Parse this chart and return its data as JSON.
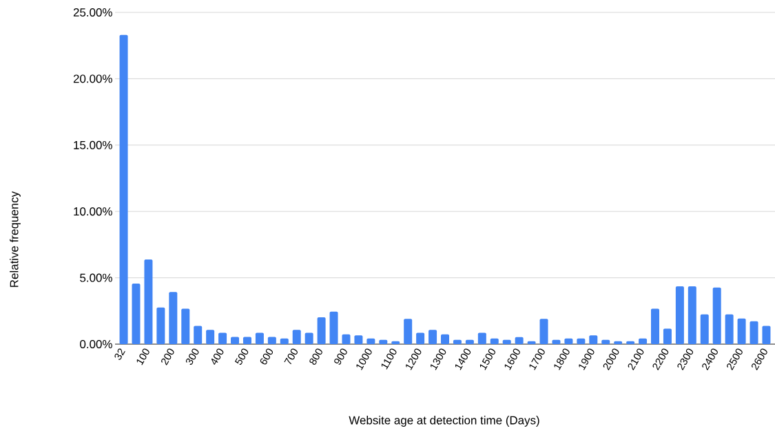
{
  "chart_data": {
    "type": "bar",
    "xlabel": "Website age at detection time (Days)",
    "ylabel": "Relative frequency",
    "categories": [
      "32",
      null,
      "100",
      null,
      "200",
      null,
      "300",
      null,
      "400",
      null,
      "500",
      null,
      "600",
      null,
      "700",
      null,
      "800",
      null,
      "900",
      null,
      "1000",
      null,
      "1100",
      null,
      "1200",
      null,
      "1300",
      null,
      "1400",
      null,
      "1500",
      null,
      "1600",
      null,
      "1700",
      null,
      "1800",
      null,
      "1900",
      null,
      "2000",
      null,
      "2100",
      null,
      "2200",
      null,
      "2300",
      null,
      "2400",
      null,
      "2500",
      null,
      "2600"
    ],
    "values": [
      23.3,
      4.57,
      6.38,
      2.76,
      3.93,
      2.67,
      1.38,
      1.07,
      0.86,
      0.55,
      0.55,
      0.86,
      0.55,
      0.43,
      1.07,
      0.86,
      2.02,
      2.45,
      0.74,
      0.66,
      0.43,
      0.33,
      0.22,
      1.9,
      0.86,
      1.07,
      0.74,
      0.33,
      0.33,
      0.86,
      0.43,
      0.33,
      0.53,
      0.22,
      1.9,
      0.33,
      0.43,
      0.43,
      0.66,
      0.33,
      0.22,
      0.22,
      0.43,
      2.67,
      1.17,
      4.36,
      4.36,
      2.24,
      4.26,
      2.24,
      1.93,
      1.72,
      1.38
    ],
    "color": "#4285f4",
    "ylim": [
      0,
      25
    ],
    "yticks": [
      {
        "value": 0,
        "label": "0.00%"
      },
      {
        "value": 5,
        "label": "5.00%"
      },
      {
        "value": 10,
        "label": "10.00%"
      },
      {
        "value": 15,
        "label": "15.00%"
      },
      {
        "value": 20,
        "label": "20.00%"
      },
      {
        "value": 25,
        "label": "25.00%"
      }
    ],
    "grid": "y"
  }
}
